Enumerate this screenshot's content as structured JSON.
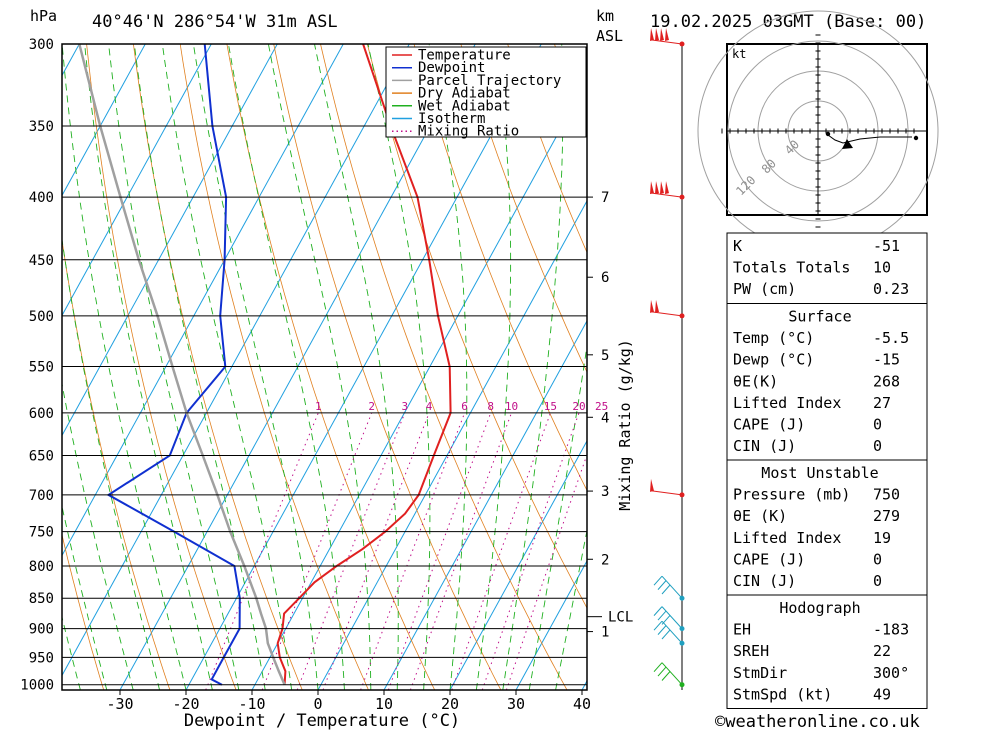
{
  "header": {
    "hpa_label": "hPa",
    "location": "40°46'N 286°54'W 31m ASL",
    "km_label": "km",
    "asl_label": "ASL",
    "datetime": "19.02.2025 03GMT (Base: 00)"
  },
  "footer": {
    "credit": "©weatheronline.co.uk"
  },
  "legend": [
    {
      "label": "Temperature",
      "color": "#e02020",
      "style": "solid"
    },
    {
      "label": "Dewpoint",
      "color": "#1030d0",
      "style": "solid"
    },
    {
      "label": "Parcel Trajectory",
      "color": "#a0a0a0",
      "style": "solid"
    },
    {
      "label": "Dry Adiabat",
      "color": "#e08020",
      "style": "solid"
    },
    {
      "label": "Wet Adiabat",
      "color": "#20b020",
      "style": "solid"
    },
    {
      "label": "Isotherm",
      "color": "#20a0e0",
      "style": "solid"
    },
    {
      "label": "Mixing Ratio",
      "color": "#c0108a",
      "style": "dotted"
    }
  ],
  "colors": {
    "temperature": "#e02020",
    "dewpoint": "#1030d0",
    "parcel": "#a0a0a0",
    "dry_adiabat": "#e08020",
    "wet_adiabat": "#20b020",
    "isotherm": "#20a0e0",
    "mixing_ratio": "#c0108a",
    "wind_red": "#e02020",
    "wind_teal": "#20a0c0",
    "wind_green": "#20b020"
  },
  "chart_data": {
    "type": "line",
    "title": "",
    "xlabel": "Dewpoint / Temperature (°C)",
    "ylabel_right": "Mixing Ratio (g/kg)",
    "xlim": [
      -40,
      40
    ],
    "ylim_hpa": [
      1000,
      300
    ],
    "x_ticks": [
      -30,
      -20,
      -10,
      0,
      10,
      20,
      30,
      40
    ],
    "pressure_ticks": [
      300,
      350,
      400,
      450,
      500,
      550,
      600,
      650,
      700,
      750,
      800,
      850,
      900,
      950,
      1000
    ],
    "km_ticks": [
      {
        "label": "7",
        "p": 400
      },
      {
        "label": "6",
        "p": 465
      },
      {
        "label": "5",
        "p": 538
      },
      {
        "label": "4",
        "p": 605
      },
      {
        "label": "3",
        "p": 695
      },
      {
        "label": "2",
        "p": 790
      },
      {
        "label": "1",
        "p": 905
      }
    ],
    "lcl": {
      "label": "LCL",
      "p": 880
    },
    "mixing_ratio_labels": [
      "1",
      "2",
      "3",
      "4",
      "6",
      "8",
      "10",
      "15",
      "20",
      "25"
    ],
    "series": [
      {
        "name": "Temperature",
        "points": [
          [
            1000,
            -5.5
          ],
          [
            975,
            -6.5
          ],
          [
            950,
            -8.5
          ],
          [
            925,
            -10
          ],
          [
            900,
            -10.5
          ],
          [
            875,
            -11.5
          ],
          [
            850,
            -10.5
          ],
          [
            825,
            -9.5
          ],
          [
            800,
            -7.5
          ],
          [
            775,
            -5
          ],
          [
            750,
            -3
          ],
          [
            725,
            -1.5
          ],
          [
            700,
            -1
          ],
          [
            650,
            -2
          ],
          [
            600,
            -3
          ],
          [
            550,
            -7
          ],
          [
            500,
            -13
          ],
          [
            450,
            -19
          ],
          [
            400,
            -26
          ],
          [
            350,
            -36
          ],
          [
            300,
            -47
          ]
        ]
      },
      {
        "name": "Dewpoint",
        "points": [
          [
            1000,
            -15
          ],
          [
            990,
            -17
          ],
          [
            950,
            -17
          ],
          [
            900,
            -17
          ],
          [
            850,
            -19.5
          ],
          [
            800,
            -23
          ],
          [
            750,
            -35
          ],
          [
            700,
            -48
          ],
          [
            650,
            -42
          ],
          [
            600,
            -43
          ],
          [
            550,
            -41
          ],
          [
            500,
            -46
          ],
          [
            450,
            -50
          ],
          [
            400,
            -55
          ],
          [
            350,
            -63
          ],
          [
            300,
            -71
          ]
        ]
      },
      {
        "name": "Parcel Trajectory",
        "points": [
          [
            1000,
            -5.5
          ],
          [
            975,
            -7.5
          ],
          [
            950,
            -9.5
          ],
          [
            925,
            -11.5
          ],
          [
            900,
            -13
          ],
          [
            875,
            -15
          ],
          [
            850,
            -17
          ],
          [
            800,
            -21.5
          ],
          [
            750,
            -26.5
          ],
          [
            700,
            -31.5
          ],
          [
            650,
            -37
          ],
          [
            600,
            -43
          ],
          [
            550,
            -49
          ],
          [
            500,
            -55.5
          ],
          [
            450,
            -63
          ],
          [
            400,
            -71
          ],
          [
            350,
            -80
          ],
          [
            300,
            -90
          ]
        ]
      }
    ]
  },
  "indices": {
    "rows": [
      {
        "label": "K",
        "value": "-51"
      },
      {
        "label": "Totals Totals",
        "value": "10"
      },
      {
        "label": "PW (cm)",
        "value": "0.23"
      }
    ]
  },
  "surface": {
    "title": "Surface",
    "rows": [
      {
        "label": "Temp (°C)",
        "value": "-5.5"
      },
      {
        "label": "Dewp (°C)",
        "value": "-15"
      },
      {
        "label": "θE(K)",
        "value": "268"
      },
      {
        "label": "Lifted Index",
        "value": "27"
      },
      {
        "label": "CAPE (J)",
        "value": "0"
      },
      {
        "label": "CIN (J)",
        "value": "0"
      }
    ]
  },
  "most_unstable": {
    "title": "Most Unstable",
    "rows": [
      {
        "label": "Pressure (mb)",
        "value": "750"
      },
      {
        "label": "θE (K)",
        "value": "279"
      },
      {
        "label": "Lifted Index",
        "value": "19"
      },
      {
        "label": "CAPE (J)",
        "value": "0"
      },
      {
        "label": "CIN (J)",
        "value": "0"
      }
    ]
  },
  "hodograph": {
    "unit": "kt",
    "ring_labels": [
      "40",
      "80",
      "120"
    ],
    "title": "Hodograph",
    "rows": [
      {
        "label": "EH",
        "value": "-183"
      },
      {
        "label": "SREH",
        "value": "22"
      },
      {
        "label": "StmDir",
        "value": "300°"
      },
      {
        "label": "StmSpd (kt)",
        "value": "49"
      }
    ]
  },
  "winds": [
    {
      "p": 300,
      "color": "red"
    },
    {
      "p": 400,
      "color": "red"
    },
    {
      "p": 500,
      "color": "red"
    },
    {
      "p": 700,
      "color": "red"
    },
    {
      "p": 850,
      "color": "teal"
    },
    {
      "p": 900,
      "color": "teal"
    },
    {
      "p": 925,
      "color": "teal"
    },
    {
      "p": 1000,
      "color": "green"
    }
  ]
}
